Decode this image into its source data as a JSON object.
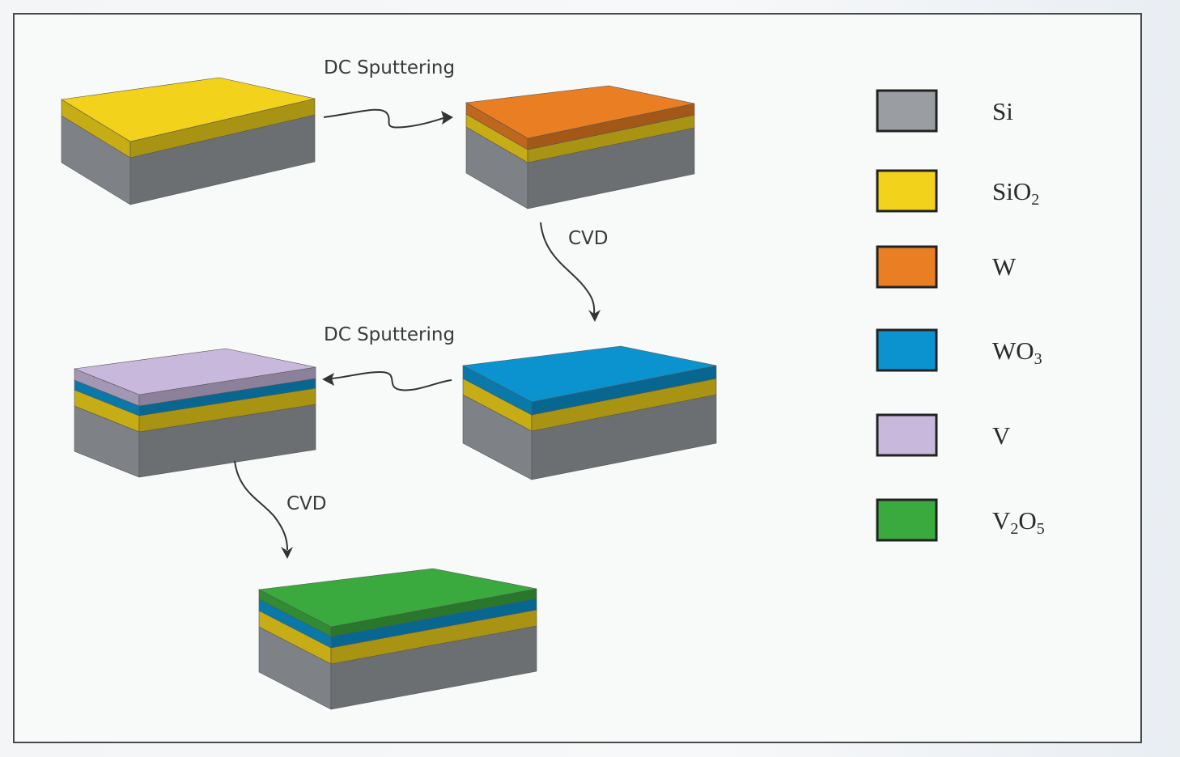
{
  "steps": {
    "sputter_1": "DC Sputtering",
    "cvd_1": "CVD",
    "sputter_2": "DC Sputtering",
    "cvd_2": "CVD"
  },
  "materials": {
    "si": {
      "label": "Si",
      "color": "#9a9ea3"
    },
    "sio2": {
      "label": "SiO",
      "sub": "2",
      "color": "#f2d21a"
    },
    "w": {
      "label": "W",
      "color": "#e97e22"
    },
    "wo3": {
      "label": "WO",
      "sub": "3",
      "color": "#0b93cf"
    },
    "v": {
      "label": "V",
      "color": "#c8b8dc"
    },
    "v2o5": {
      "label": "V",
      "sub": "2",
      "label2": "O",
      "sub2": "5",
      "color": "#3aaa3e"
    }
  },
  "stacks": {
    "a": [
      "si",
      "sio2"
    ],
    "b": [
      "si",
      "sio2",
      "w"
    ],
    "c": [
      "si",
      "sio2",
      "wo3"
    ],
    "d": [
      "si",
      "sio2",
      "wo3",
      "v"
    ],
    "e": [
      "si",
      "sio2",
      "wo3",
      "v2o5"
    ]
  }
}
